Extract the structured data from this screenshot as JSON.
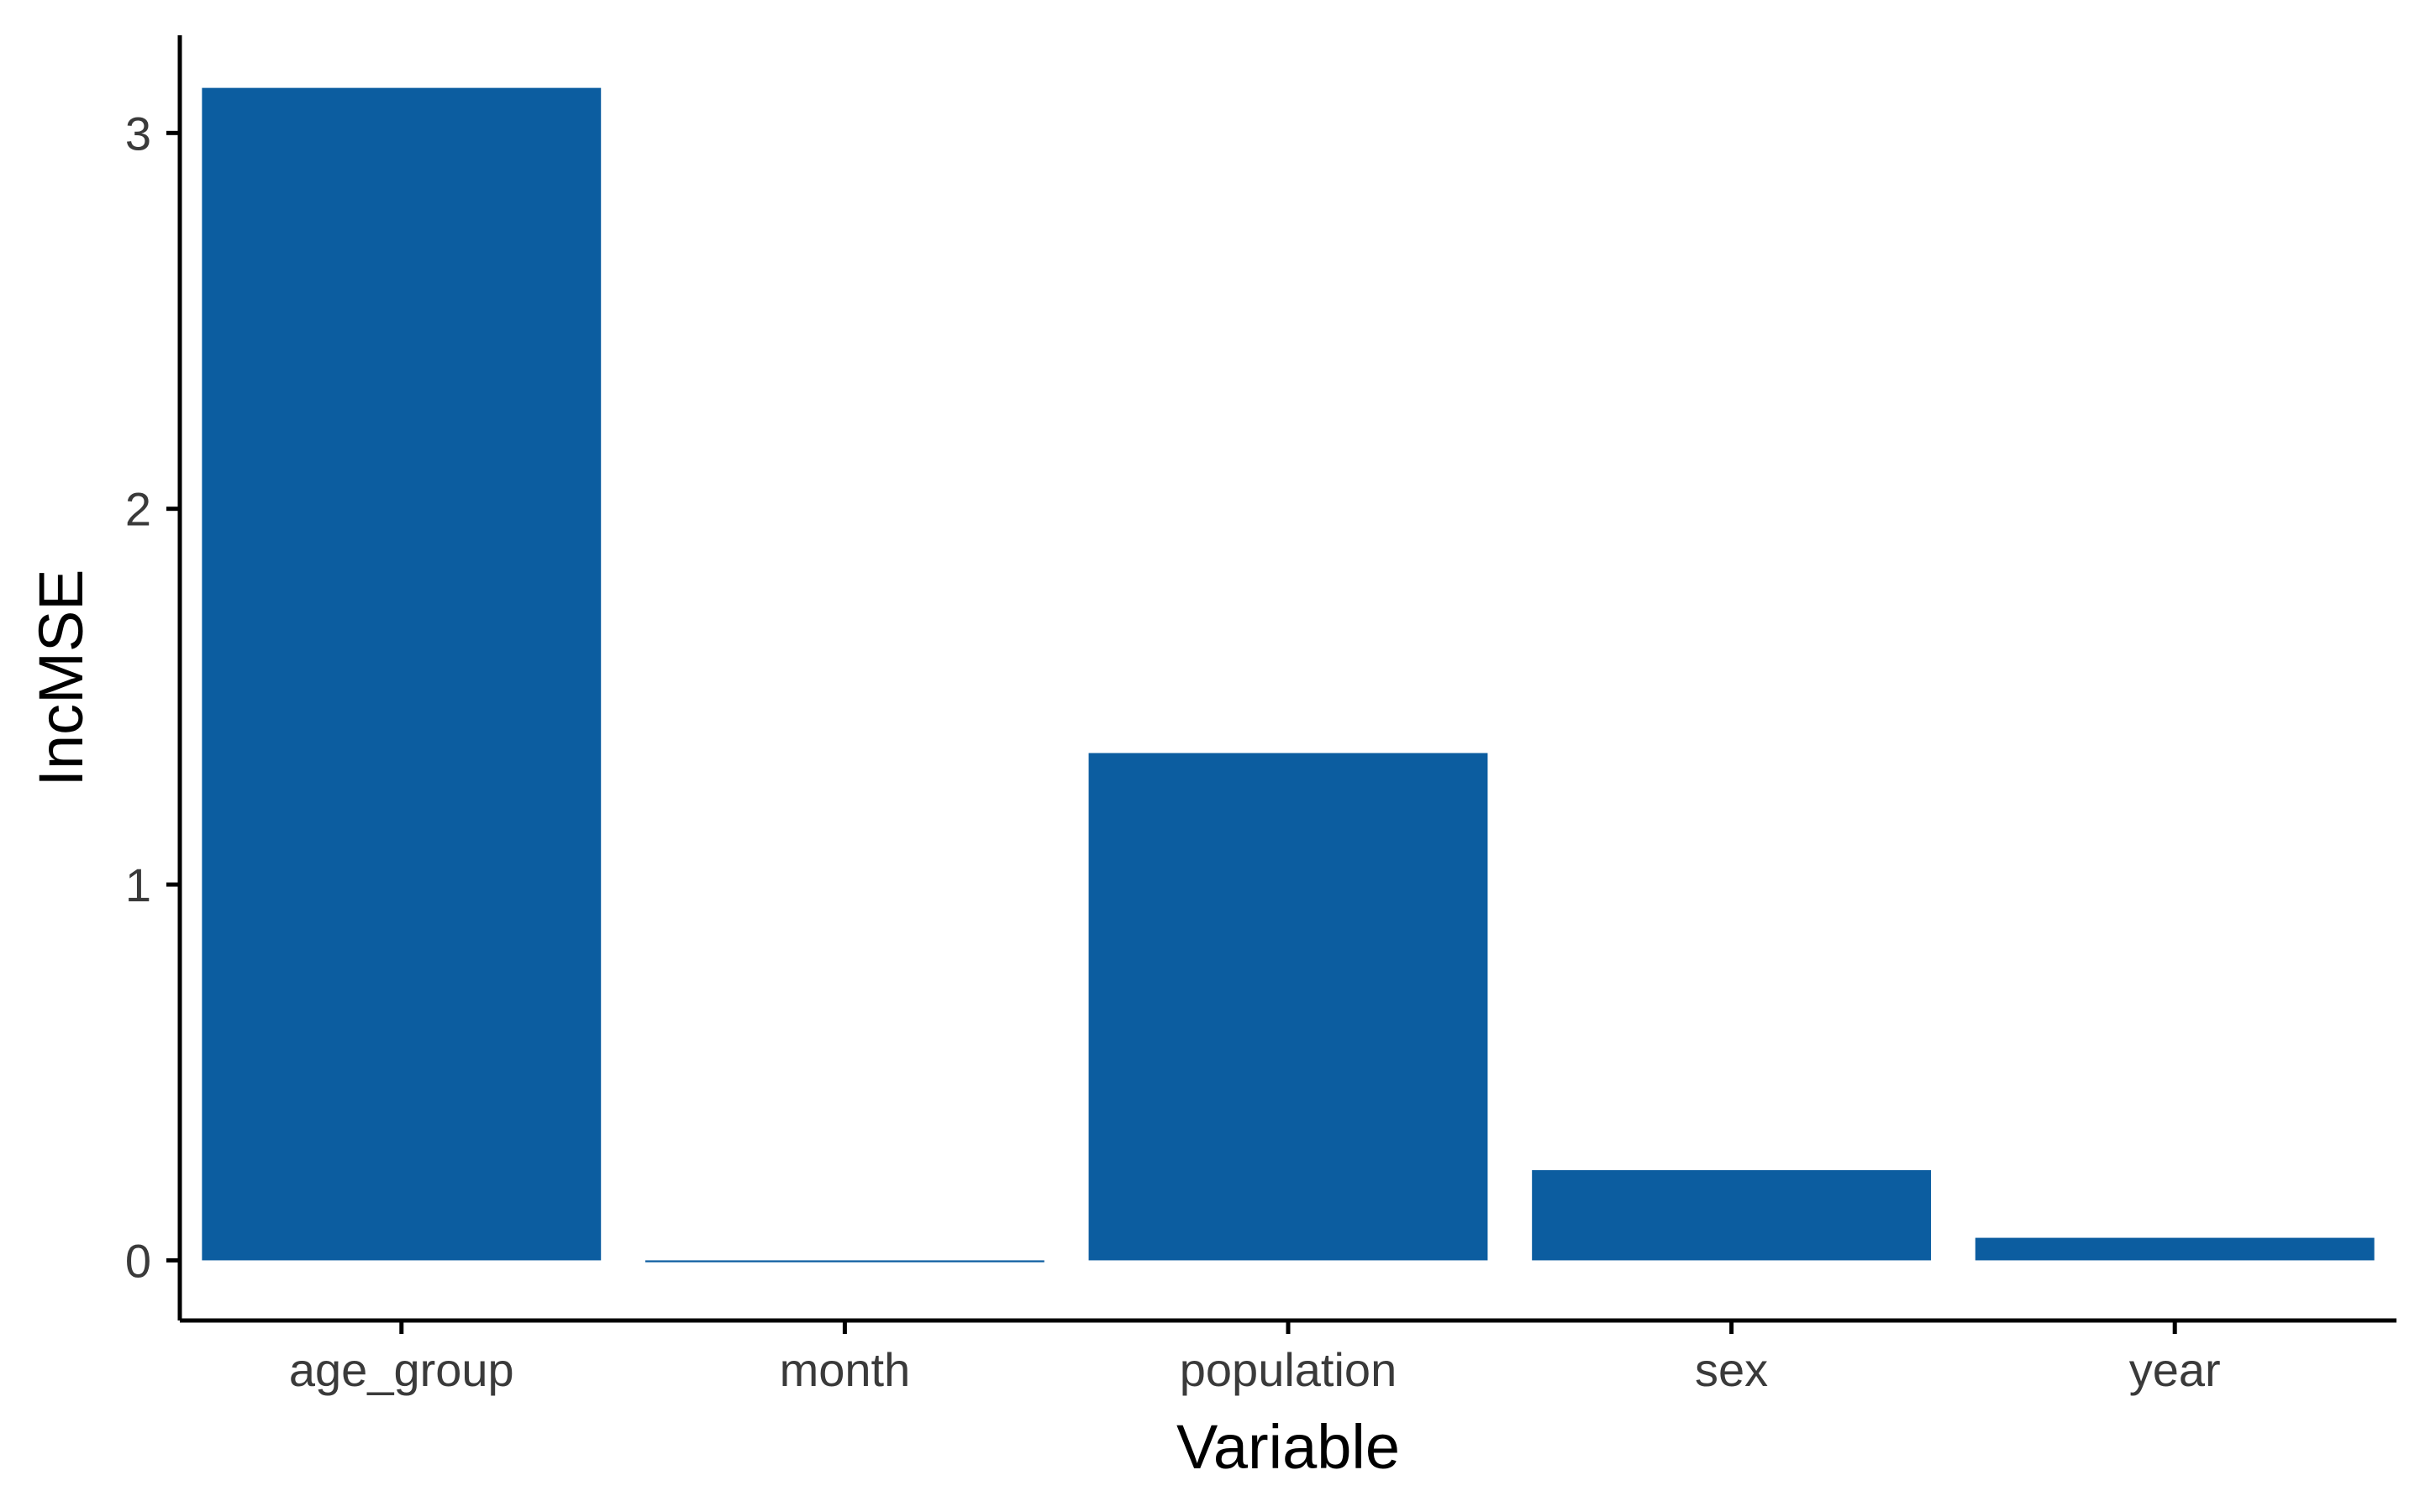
{
  "chart_data": {
    "type": "bar",
    "categories": [
      "age_group",
      "month",
      "population",
      "sex",
      "year"
    ],
    "values": [
      3.12,
      -0.005,
      1.35,
      0.24,
      0.06
    ],
    "xlabel": "Variable",
    "ylabel": "IncMSE",
    "ylim": [
      -0.16,
      3.26
    ],
    "yticks": [
      0,
      1,
      2,
      3
    ],
    "grid": false,
    "legend": "none",
    "bar_color": "#0c5da0",
    "axis_color": "#000000",
    "tick_label_color": "#3a3a3a"
  }
}
